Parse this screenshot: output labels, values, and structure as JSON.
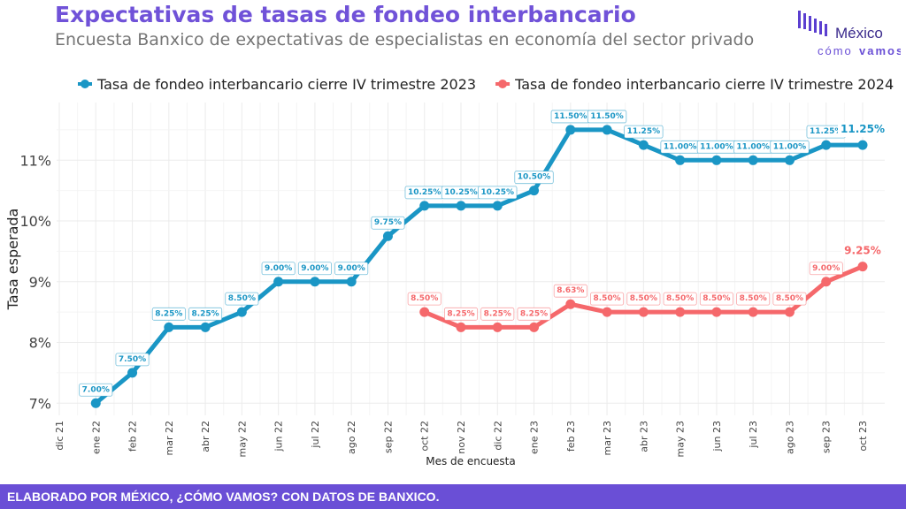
{
  "header": {
    "title": "Expectativas de tasas de fondeo interbancario",
    "subtitle": "Encuesta Banxico de expectativas de especialistas en economía del sector privado"
  },
  "logo": {
    "line1": "México",
    "line2_a": "cómo",
    "line2_b": "vamos",
    "color": "#5b3fd0"
  },
  "footer": {
    "text": "ELABORADO POR MÉXICO, ¿CÓMO VAMOS? CON DATOS DE BANXICO."
  },
  "chart_data": {
    "type": "line",
    "xlabel": "Mes de encuesta",
    "ylabel": "Tasa esperada",
    "categories": [
      "dic 21",
      "ene 22",
      "feb 22",
      "mar 22",
      "abr 22",
      "may 22",
      "jun 22",
      "jul 22",
      "ago 22",
      "sep 22",
      "oct 22",
      "nov 22",
      "dic 22",
      "ene 23",
      "feb 23",
      "mar 23",
      "abr 23",
      "may 23",
      "jun 23",
      "jul 23",
      "ago 23",
      "sep 23",
      "oct 23"
    ],
    "ylim": [
      6.8,
      11.95
    ],
    "yticks": [
      7,
      8,
      9,
      10,
      11
    ],
    "ytick_labels": [
      "7%",
      "8%",
      "9%",
      "10%",
      "11%"
    ],
    "grid": true,
    "legend_position": "top",
    "series": [
      {
        "name": "Tasa de fondeo interbancario cierre IV trimestre 2023",
        "color": "#1a96c5",
        "values": [
          null,
          7.0,
          7.5,
          8.25,
          8.25,
          8.5,
          9.0,
          9.0,
          9.0,
          9.75,
          10.25,
          10.25,
          10.25,
          10.5,
          11.5,
          11.5,
          11.25,
          11.0,
          11.0,
          11.0,
          11.0,
          11.25,
          11.25
        ],
        "labels": [
          null,
          "7.00%",
          "7.50%",
          "8.25%",
          "8.25%",
          "8.50%",
          "9.00%",
          "9.00%",
          "9.00%",
          "9.75%",
          "10.25%",
          "10.25%",
          "10.25%",
          "10.50%",
          "11.50%",
          "11.50%",
          "11.25%",
          "11.00%",
          "11.00%",
          "11.00%",
          "11.00%",
          "11.25%",
          "11.25%"
        ]
      },
      {
        "name": "Tasa de fondeo interbancario cierre IV trimestre 2024",
        "color": "#f5686b",
        "values": [
          null,
          null,
          null,
          null,
          null,
          null,
          null,
          null,
          null,
          null,
          8.5,
          8.25,
          8.25,
          8.25,
          8.63,
          8.5,
          8.5,
          8.5,
          8.5,
          8.5,
          8.5,
          9.0,
          9.25
        ],
        "labels": [
          null,
          null,
          null,
          null,
          null,
          null,
          null,
          null,
          null,
          null,
          "8.50%",
          "8.25%",
          "8.25%",
          "8.25%",
          "8.63%",
          "8.50%",
          "8.50%",
          "8.50%",
          "8.50%",
          "8.50%",
          "8.50%",
          "9.00%",
          "9.25%"
        ]
      }
    ]
  }
}
